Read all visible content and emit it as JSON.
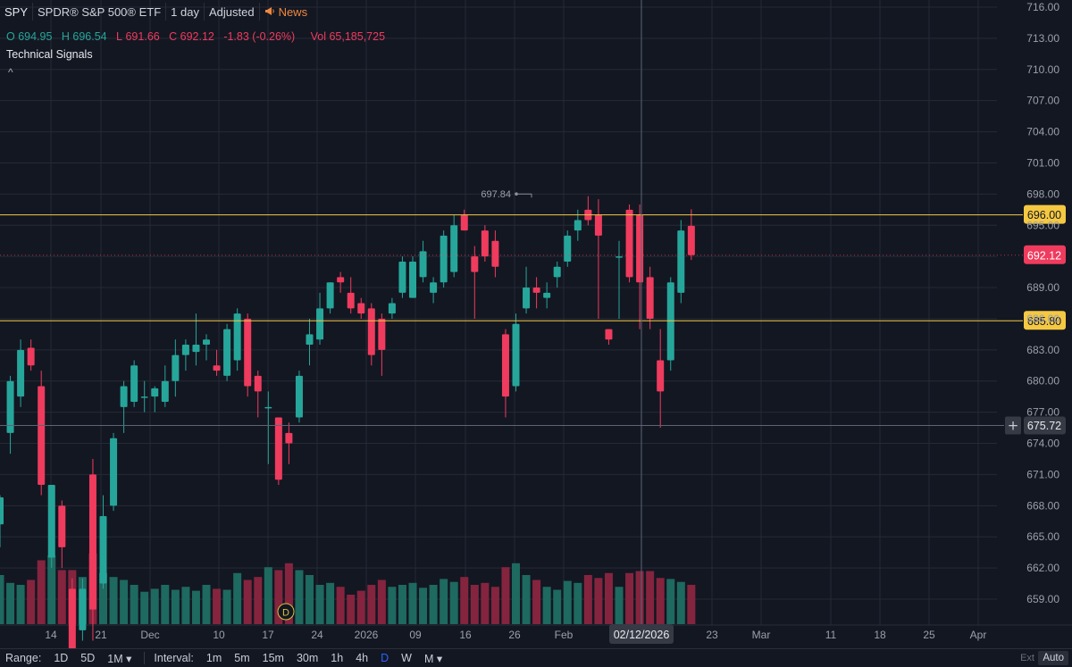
{
  "header": {
    "symbol": "SPY",
    "name": "SPDR® S&P 500® ETF",
    "interval": "1 day",
    "adjusted": "Adjusted",
    "news": "News"
  },
  "ohlc": {
    "o_label": "O",
    "o": "694.95",
    "h_label": "H",
    "h": "696.54",
    "l_label": "L",
    "l": "691.66",
    "c_label": "C",
    "c": "692.12",
    "change": "-1.83 (-0.26%)",
    "vol_label": "Vol",
    "vol": "65,185,725"
  },
  "technical_signals": "Technical Signals",
  "colors": {
    "up": "#26a69a",
    "down": "#ef3b5d",
    "line": "#f5c842",
    "bg": "#131722",
    "grid": "#262a36"
  },
  "chart_data": {
    "type": "candlestick",
    "y_ticks": [
      "716.00",
      "713.00",
      "710.00",
      "707.00",
      "704.00",
      "701.00",
      "698.00",
      "695.00",
      "692.00",
      "689.00",
      "686.00",
      "683.00",
      "680.00",
      "677.00",
      "674.00",
      "671.00",
      "668.00",
      "665.00",
      "662.00",
      "659.00"
    ],
    "x_ticks": [
      "14",
      "21",
      "Dec",
      "10",
      "17",
      "24",
      "2026",
      "09",
      "16",
      "26",
      "Feb",
      "23",
      "Mar",
      "11",
      "18",
      "25",
      "Apr"
    ],
    "ylim": [
      657.0,
      717.5
    ],
    "horizontal_lines": [
      {
        "value": 696.0,
        "label": "696.00",
        "color": "#f5c842"
      },
      {
        "value": 685.8,
        "label": "685.80",
        "color": "#f5c842"
      }
    ],
    "last_price": {
      "value": 692.12,
      "label": "692.12"
    },
    "crosshair": {
      "price": 675.72,
      "price_label": "675.72",
      "date_label": "02/12/2026"
    },
    "high_marker": {
      "value": 697.84,
      "label": "697.84"
    },
    "event_marker": "D",
    "candles": [
      {
        "o": 666.2,
        "h": 669.0,
        "l": 664.0,
        "c": 668.8,
        "v": 0.5
      },
      {
        "o": 675.0,
        "h": 680.5,
        "l": 673.0,
        "c": 680.0,
        "v": 0.42
      },
      {
        "o": 678.5,
        "h": 684.0,
        "l": 677.5,
        "c": 683.0,
        "v": 0.4
      },
      {
        "o": 683.2,
        "h": 684.0,
        "l": 681.0,
        "c": 681.5,
        "v": 0.45
      },
      {
        "o": 679.5,
        "h": 681.0,
        "l": 669.0,
        "c": 670.0,
        "v": 0.65
      },
      {
        "o": 663.0,
        "h": 670.0,
        "l": 662.0,
        "c": 670.0,
        "v": 0.7
      },
      {
        "o": 668.0,
        "h": 668.5,
        "l": 662.0,
        "c": 664.0,
        "v": 0.55
      },
      {
        "o": 660.0,
        "h": 661.0,
        "l": 652.0,
        "c": 653.0,
        "v": 0.55
      },
      {
        "o": 656.0,
        "h": 661.0,
        "l": 655.0,
        "c": 660.0,
        "v": 0.48
      },
      {
        "o": 671.0,
        "h": 672.5,
        "l": 655.0,
        "c": 658.0,
        "v": 0.72
      },
      {
        "o": 660.5,
        "h": 669.0,
        "l": 660.0,
        "c": 667.0,
        "v": 0.52
      },
      {
        "o": 668.0,
        "h": 675.0,
        "l": 667.5,
        "c": 674.5,
        "v": 0.48
      },
      {
        "o": 677.5,
        "h": 680.0,
        "l": 675.0,
        "c": 679.5,
        "v": 0.45
      },
      {
        "o": 678.0,
        "h": 682.0,
        "l": 677.5,
        "c": 681.5,
        "v": 0.4
      },
      {
        "o": 678.5,
        "h": 680.0,
        "l": 677.0,
        "c": 678.5,
        "v": 0.33
      },
      {
        "o": 678.5,
        "h": 679.5,
        "l": 677.0,
        "c": 679.3,
        "v": 0.36
      },
      {
        "o": 678.0,
        "h": 681.5,
        "l": 677.5,
        "c": 680.0,
        "v": 0.4
      },
      {
        "o": 680.0,
        "h": 684.0,
        "l": 678.5,
        "c": 682.5,
        "v": 0.35
      },
      {
        "o": 682.5,
        "h": 684.0,
        "l": 681.0,
        "c": 683.5,
        "v": 0.38
      },
      {
        "o": 682.8,
        "h": 686.5,
        "l": 681.5,
        "c": 683.5,
        "v": 0.34
      },
      {
        "o": 683.5,
        "h": 684.5,
        "l": 682.0,
        "c": 684.0,
        "v": 0.4
      },
      {
        "o": 681.5,
        "h": 683.0,
        "l": 680.5,
        "c": 681.0,
        "v": 0.36
      },
      {
        "o": 680.5,
        "h": 685.5,
        "l": 680.0,
        "c": 685.0,
        "v": 0.35
      },
      {
        "o": 682.0,
        "h": 687.0,
        "l": 681.0,
        "c": 686.5,
        "v": 0.52
      },
      {
        "o": 686.0,
        "h": 686.5,
        "l": 678.5,
        "c": 679.5,
        "v": 0.45
      },
      {
        "o": 680.5,
        "h": 681.0,
        "l": 676.5,
        "c": 679.0,
        "v": 0.48
      },
      {
        "o": 677.5,
        "h": 679.0,
        "l": 672.0,
        "c": 677.5,
        "v": 0.58
      },
      {
        "o": 676.5,
        "h": 676.5,
        "l": 670.0,
        "c": 670.5,
        "v": 0.55
      },
      {
        "o": 675.0,
        "h": 676.0,
        "l": 672.0,
        "c": 674.0,
        "v": 0.62
      },
      {
        "o": 676.5,
        "h": 681.0,
        "l": 676.0,
        "c": 680.5,
        "v": 0.55
      },
      {
        "o": 683.5,
        "h": 686.0,
        "l": 681.5,
        "c": 684.5,
        "v": 0.5
      },
      {
        "o": 684.0,
        "h": 688.5,
        "l": 683.5,
        "c": 687.0,
        "v": 0.4
      },
      {
        "o": 687.0,
        "h": 689.5,
        "l": 686.5,
        "c": 689.5,
        "v": 0.42
      },
      {
        "o": 690.0,
        "h": 690.5,
        "l": 688.5,
        "c": 689.5,
        "v": 0.38
      },
      {
        "o": 688.5,
        "h": 690.0,
        "l": 686.5,
        "c": 687.0,
        "v": 0.3
      },
      {
        "o": 687.5,
        "h": 688.0,
        "l": 686.0,
        "c": 686.5,
        "v": 0.34
      },
      {
        "o": 687.0,
        "h": 687.5,
        "l": 681.5,
        "c": 682.5,
        "v": 0.4
      },
      {
        "o": 686.0,
        "h": 686.5,
        "l": 680.5,
        "c": 683.0,
        "v": 0.45
      },
      {
        "o": 686.5,
        "h": 688.0,
        "l": 686.0,
        "c": 687.5,
        "v": 0.38
      },
      {
        "o": 688.5,
        "h": 692.0,
        "l": 688.0,
        "c": 691.5,
        "v": 0.4
      },
      {
        "o": 688.0,
        "h": 692.0,
        "l": 688.0,
        "c": 691.5,
        "v": 0.42
      },
      {
        "o": 690.0,
        "h": 693.5,
        "l": 689.5,
        "c": 692.5,
        "v": 0.37
      },
      {
        "o": 688.5,
        "h": 690.0,
        "l": 687.5,
        "c": 689.5,
        "v": 0.4
      },
      {
        "o": 689.5,
        "h": 694.5,
        "l": 689.0,
        "c": 694.0,
        "v": 0.46
      },
      {
        "o": 690.5,
        "h": 696.0,
        "l": 690.0,
        "c": 695.0,
        "v": 0.43
      },
      {
        "o": 696.0,
        "h": 696.5,
        "l": 694.5,
        "c": 694.5,
        "v": 0.48
      },
      {
        "o": 692.0,
        "h": 693.0,
        "l": 686.0,
        "c": 690.5,
        "v": 0.4
      },
      {
        "o": 694.5,
        "h": 695.0,
        "l": 691.5,
        "c": 692.0,
        "v": 0.42
      },
      {
        "o": 693.5,
        "h": 694.5,
        "l": 690.0,
        "c": 691.0,
        "v": 0.38
      },
      {
        "o": 684.5,
        "h": 685.0,
        "l": 676.5,
        "c": 678.5,
        "v": 0.58
      },
      {
        "o": 679.5,
        "h": 686.5,
        "l": 679.0,
        "c": 685.5,
        "v": 0.62
      },
      {
        "o": 687.0,
        "h": 691.0,
        "l": 686.5,
        "c": 689.0,
        "v": 0.5
      },
      {
        "o": 689.0,
        "h": 690.0,
        "l": 687.0,
        "c": 688.5,
        "v": 0.45
      },
      {
        "o": 688.0,
        "h": 689.5,
        "l": 687.0,
        "c": 688.5,
        "v": 0.38
      },
      {
        "o": 690.0,
        "h": 691.5,
        "l": 689.0,
        "c": 691.0,
        "v": 0.35
      },
      {
        "o": 691.5,
        "h": 694.5,
        "l": 691.0,
        "c": 694.0,
        "v": 0.44
      },
      {
        "o": 694.5,
        "h": 696.5,
        "l": 693.5,
        "c": 695.5,
        "v": 0.42
      },
      {
        "o": 696.5,
        "h": 697.8,
        "l": 695.0,
        "c": 695.5,
        "v": 0.5
      },
      {
        "o": 696.0,
        "h": 697.5,
        "l": 686.0,
        "c": 694.0,
        "v": 0.47
      },
      {
        "o": 685.0,
        "h": 685.0,
        "l": 683.5,
        "c": 684.0,
        "v": 0.52
      },
      {
        "o": 692.0,
        "h": 693.5,
        "l": 686.0,
        "c": 692.0,
        "v": 0.38
      },
      {
        "o": 696.5,
        "h": 697.0,
        "l": 689.5,
        "c": 690.0,
        "v": 0.52
      },
      {
        "o": 696.0,
        "h": 697.0,
        "l": 685.0,
        "c": 689.5,
        "v": 0.54
      },
      {
        "o": 690.0,
        "h": 691.0,
        "l": 685.0,
        "c": 686.0,
        "v": 0.54
      },
      {
        "o": 682.0,
        "h": 685.0,
        "l": 675.5,
        "c": 679.0,
        "v": 0.47
      },
      {
        "o": 682.0,
        "h": 690.0,
        "l": 681.0,
        "c": 689.5,
        "v": 0.46
      },
      {
        "o": 688.5,
        "h": 695.5,
        "l": 687.5,
        "c": 694.5,
        "v": 0.43
      },
      {
        "o": 694.95,
        "h": 696.54,
        "l": 691.66,
        "c": 692.12,
        "v": 0.4
      }
    ]
  },
  "range_bar": {
    "range_label": "Range:",
    "ranges": [
      "1D",
      "5D",
      "1M ▾"
    ],
    "interval_label": "Interval:",
    "intervals": [
      "1m",
      "5m",
      "15m",
      "30m",
      "1h",
      "4h",
      "D",
      "W",
      "M ▾"
    ],
    "active_interval": "D",
    "ext": "Ext",
    "auto": "Auto"
  }
}
